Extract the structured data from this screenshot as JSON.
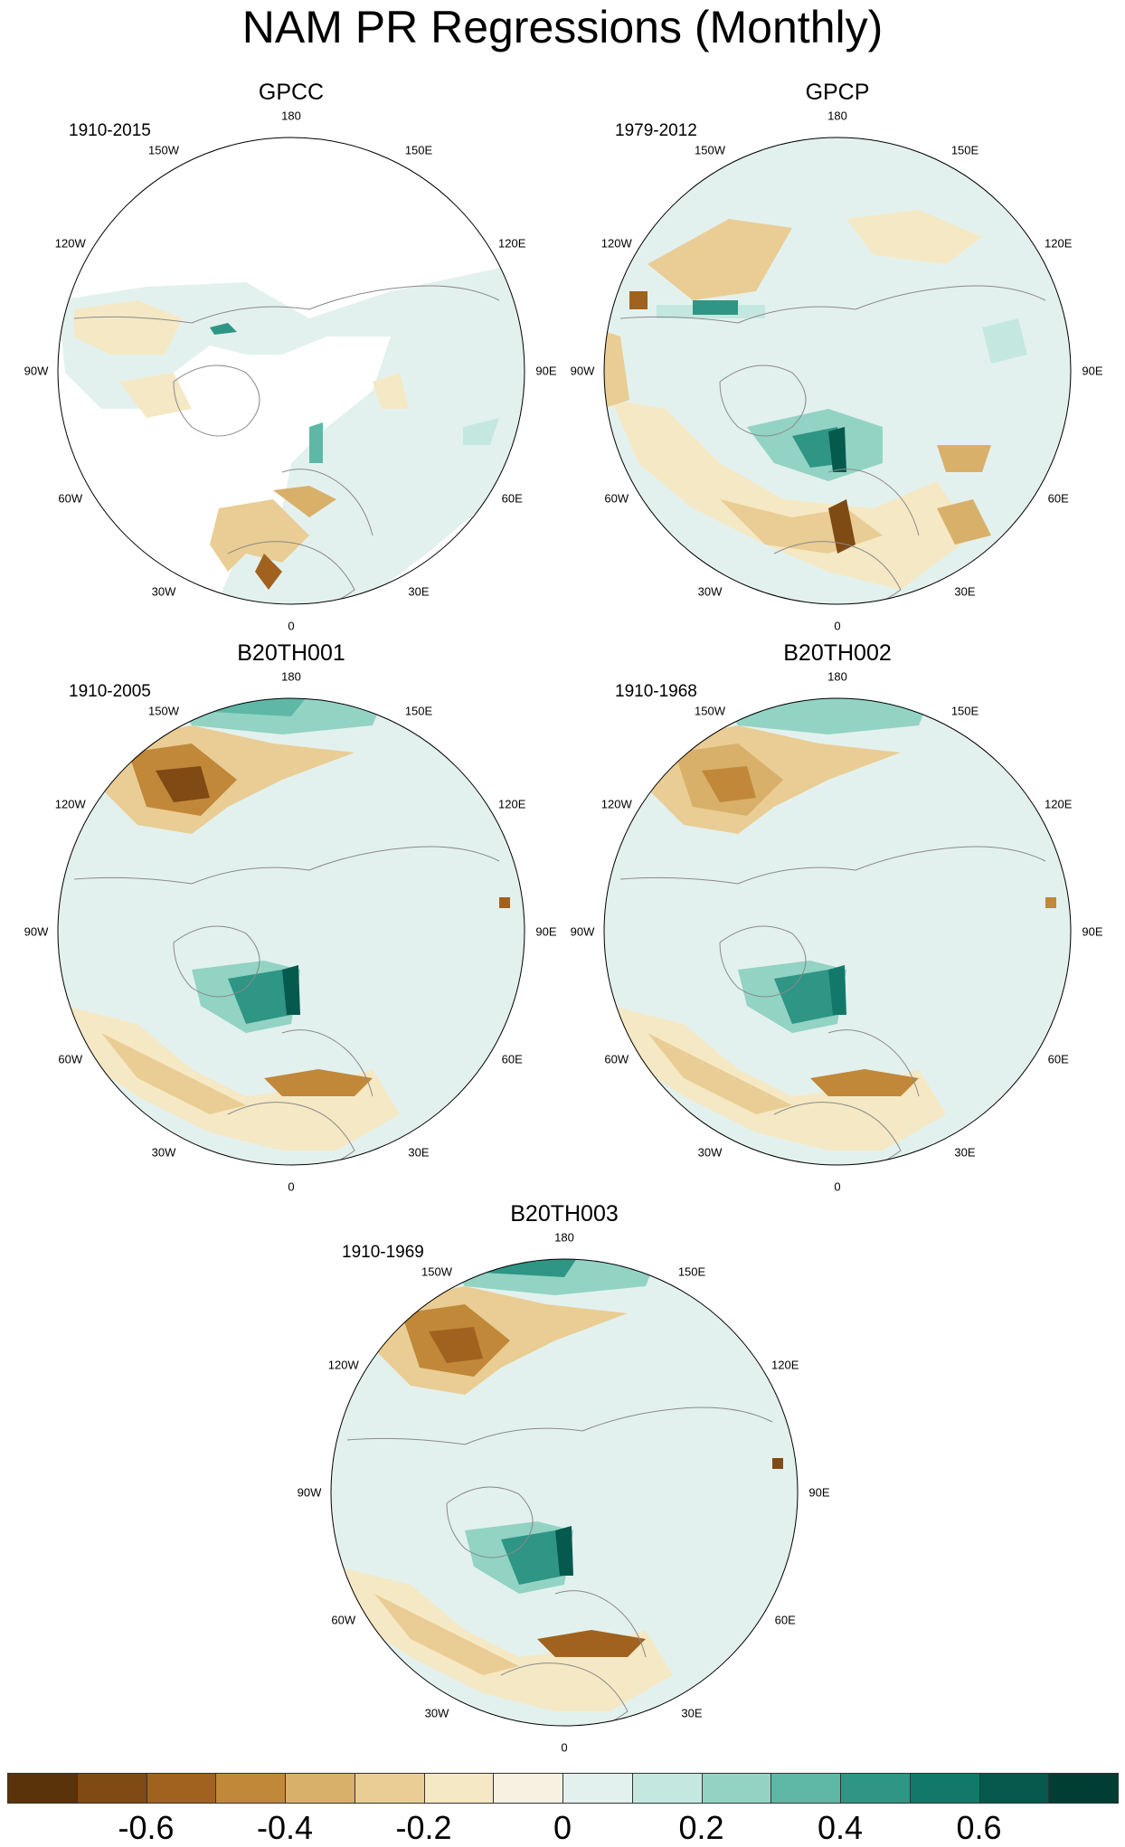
{
  "title": "NAM PR Regressions (Monthly)",
  "panels": [
    {
      "name": "GPCC",
      "period": "1910-2015"
    },
    {
      "name": "GPCP",
      "period": "1979-2012"
    },
    {
      "name": "B20TH001",
      "period": "1910-2005"
    },
    {
      "name": "B20TH002",
      "period": "1910-1968"
    },
    {
      "name": "B20TH003",
      "period": "1910-1969"
    }
  ],
  "longitude_labels": [
    "180",
    "150E",
    "120E",
    "90E",
    "60E",
    "30E",
    "0",
    "30W",
    "60W",
    "90W",
    "120W",
    "150W"
  ],
  "colorbar": {
    "colors": [
      "#5a330b",
      "#7f4a14",
      "#a0621e",
      "#c08838",
      "#d8b06a",
      "#e9cd94",
      "#f5e8c4",
      "#f6f1e1",
      "#e3f1ee",
      "#c4e8e0",
      "#92d3c4",
      "#5fb8a6",
      "#2f9585",
      "#12796a",
      "#06594d",
      "#003d33"
    ],
    "tick_labels": [
      "-0.6",
      "-0.4",
      "-0.2",
      "0",
      "0.2",
      "0.4",
      "0.6"
    ]
  }
}
